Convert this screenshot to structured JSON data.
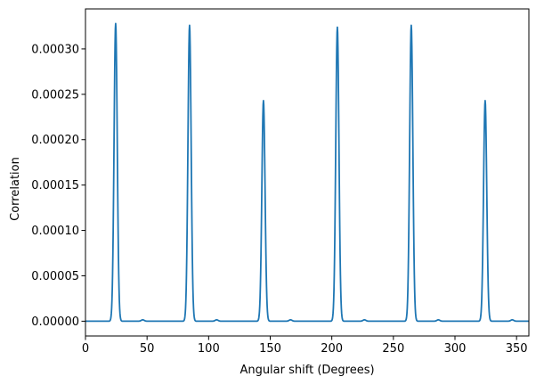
{
  "chart_data": {
    "type": "line",
    "title": "",
    "xlabel": "Angular shift (Degrees)",
    "ylabel": "Correlation",
    "xlim": [
      0,
      360
    ],
    "ylim": [
      -1.63e-05,
      0.0003441
    ],
    "x_ticks": [
      0,
      50,
      100,
      150,
      200,
      250,
      300,
      350
    ],
    "x_tick_labels": [
      "0",
      "50",
      "100",
      "150",
      "200",
      "250",
      "300",
      "350"
    ],
    "y_ticks": [
      0,
      5e-05,
      0.0001,
      0.00015,
      0.0002,
      0.00025,
      0.0003
    ],
    "y_tick_labels": [
      "0.00000",
      "0.00005",
      "0.00010",
      "0.00015",
      "0.00020",
      "0.00025",
      "0.00030"
    ],
    "grid": false,
    "legend": "none",
    "line_color": "#1f77b4",
    "peaks": [
      {
        "x": 24.5,
        "y": 0.000328
      },
      {
        "x": 84.5,
        "y": 0.000326
      },
      {
        "x": 144.5,
        "y": 0.000243
      },
      {
        "x": 204.5,
        "y": 0.000324
      },
      {
        "x": 264.5,
        "y": 0.000326
      },
      {
        "x": 324.5,
        "y": 0.000243
      }
    ],
    "minor_bumps": [
      {
        "x": 46.5,
        "y": 1.5e-06
      },
      {
        "x": 106.5,
        "y": 1.5e-06
      },
      {
        "x": 166.5,
        "y": 1.5e-06
      },
      {
        "x": 226.5,
        "y": 1.5e-06
      },
      {
        "x": 286.5,
        "y": 1.5e-06
      },
      {
        "x": 346.5,
        "y": 1.5e-06
      }
    ],
    "baseline": 0.0
  }
}
